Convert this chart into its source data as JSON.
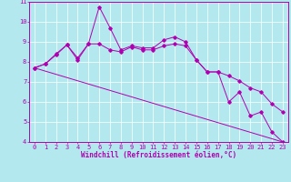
{
  "title": "",
  "xlabel": "Windchill (Refroidissement éolien,°C)",
  "ylabel": "",
  "background_color": "#b3e8ee",
  "line_color": "#b000b0",
  "xlim": [
    -0.5,
    23.5
  ],
  "ylim": [
    4,
    11
  ],
  "xticks": [
    0,
    1,
    2,
    3,
    4,
    5,
    6,
    7,
    8,
    9,
    10,
    11,
    12,
    13,
    14,
    15,
    16,
    17,
    18,
    19,
    20,
    21,
    22,
    23
  ],
  "yticks": [
    4,
    5,
    6,
    7,
    8,
    9,
    10,
    11
  ],
  "curve1_x": [
    0,
    1,
    2,
    3,
    4,
    5,
    6,
    7,
    8,
    9,
    10,
    11,
    12,
    13,
    14,
    15,
    16,
    17,
    18,
    19,
    20,
    21,
    22,
    23
  ],
  "curve1_y": [
    7.7,
    7.9,
    8.4,
    8.85,
    8.1,
    8.9,
    10.75,
    9.7,
    8.6,
    8.8,
    8.7,
    8.7,
    9.1,
    9.25,
    9.0,
    8.1,
    7.5,
    7.5,
    6.0,
    6.5,
    5.3,
    5.5,
    4.5,
    4.0
  ],
  "curve2_x": [
    0,
    1,
    2,
    3,
    4,
    5,
    6,
    7,
    8,
    9,
    10,
    11,
    12,
    13,
    14,
    15,
    16,
    17,
    18,
    19,
    20,
    21,
    22,
    23
  ],
  "curve2_y": [
    7.7,
    7.9,
    8.35,
    8.85,
    8.2,
    8.9,
    8.9,
    8.6,
    8.5,
    8.75,
    8.6,
    8.6,
    8.8,
    8.9,
    8.8,
    8.1,
    7.5,
    7.5,
    7.3,
    7.05,
    6.7,
    6.5,
    5.9,
    5.5
  ],
  "curve3_x": [
    0,
    23
  ],
  "curve3_y": [
    7.7,
    4.0
  ],
  "grid_color": "#ffffff",
  "marker": "D",
  "markersize": 1.8,
  "linewidth": 0.7,
  "tick_fontsize": 5.0,
  "label_fontsize": 5.5
}
